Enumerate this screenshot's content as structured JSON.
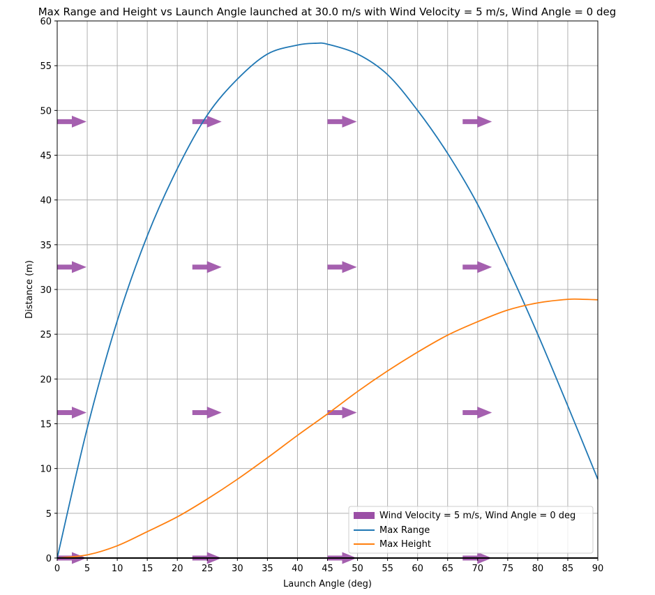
{
  "chart_data": {
    "type": "line",
    "title": "Max Range and Height vs Launch Angle launched at 30.0 m/s with Wind Velocity = 5 m/s, Wind Angle = 0 deg",
    "xlabel": "Launch Angle (deg)",
    "ylabel": "Distance (m)",
    "xlim": [
      0,
      90
    ],
    "ylim": [
      0,
      60
    ],
    "xticks": [
      "0",
      "5",
      "10",
      "15",
      "20",
      "25",
      "30",
      "35",
      "40",
      "45",
      "50",
      "55",
      "60",
      "65",
      "70",
      "75",
      "80",
      "85",
      "90"
    ],
    "yticks": [
      "0",
      "5",
      "10",
      "15",
      "20",
      "25",
      "30",
      "35",
      "40",
      "45",
      "50",
      "55",
      "60"
    ],
    "grid": true,
    "legend_position": "lower-right",
    "legend": [
      "Wind Velocity = 5 m/s, Wind Angle = 0 deg",
      "Max Range",
      "Max Height"
    ],
    "series": [
      {
        "name": "Max Range",
        "color": "#1f77b4",
        "x": [
          0,
          5,
          10,
          15,
          20,
          25,
          30,
          35,
          40,
          43,
          45,
          50,
          55,
          60,
          65,
          70,
          75,
          80,
          85,
          90
        ],
        "y": [
          0,
          14.5,
          26.5,
          36.0,
          43.5,
          49.5,
          53.5,
          56.3,
          57.3,
          57.5,
          57.4,
          56.3,
          54.0,
          50.0,
          45.2,
          39.5,
          32.5,
          25.0,
          17.0,
          8.8
        ]
      },
      {
        "name": "Max Height",
        "color": "#ff7f0e",
        "x": [
          0,
          5,
          10,
          15,
          20,
          25,
          30,
          35,
          40,
          45,
          50,
          55,
          60,
          65,
          70,
          75,
          80,
          85,
          87.5,
          90
        ],
        "y": [
          0,
          0.35,
          1.37,
          2.95,
          4.6,
          6.6,
          8.8,
          11.2,
          13.7,
          16.1,
          18.6,
          20.9,
          23.0,
          24.9,
          26.4,
          27.7,
          28.5,
          28.9,
          28.9,
          28.85
        ]
      }
    ],
    "wind_field": {
      "name": "Wind Velocity = 5 m/s, Wind Angle = 0 deg",
      "color": "#9b4fa6",
      "direction_deg": 0,
      "x": [
        0,
        22.5,
        45,
        67.5
      ],
      "y": [
        0,
        16.25,
        32.5,
        48.75
      ]
    }
  }
}
